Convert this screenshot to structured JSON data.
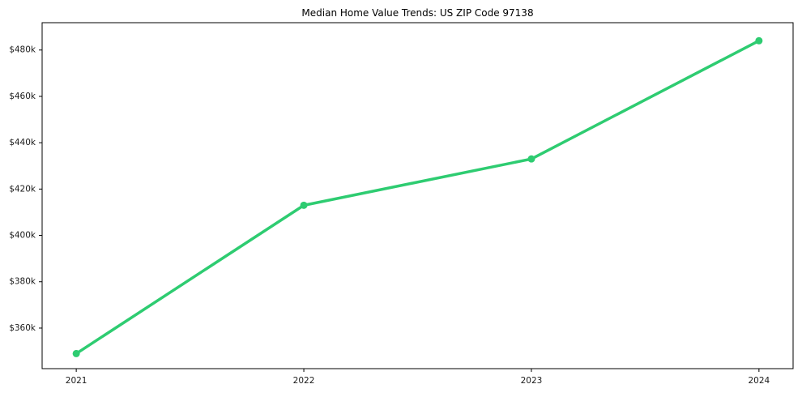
{
  "title": "Median Home Value Trends: US ZIP Code 97138",
  "chart_data": {
    "type": "line",
    "title": "Median Home Value Trends: US ZIP Code 97138",
    "xlabel": "",
    "ylabel": "",
    "x": [
      2021,
      2022,
      2023,
      2024
    ],
    "x_labels": [
      "2021",
      "2022",
      "2023",
      "2024"
    ],
    "values": [
      349000,
      413000,
      433000,
      484000
    ],
    "ytick_values": [
      360000,
      380000,
      400000,
      420000,
      440000,
      460000,
      480000
    ],
    "ytick_labels": [
      "$360k",
      "$380k",
      "$400k",
      "$420k",
      "$440k",
      "$460k",
      "$480k"
    ],
    "xlim": [
      2020.85,
      2024.15
    ],
    "ylim": [
      342500,
      491800
    ],
    "grid": false,
    "legend": null,
    "marker": "circle",
    "colors": {
      "line": "#2ecc71",
      "marker": "#2ecc71",
      "axis": "#000000",
      "tick_text": "#1a1a1a",
      "background": "#ffffff"
    }
  }
}
